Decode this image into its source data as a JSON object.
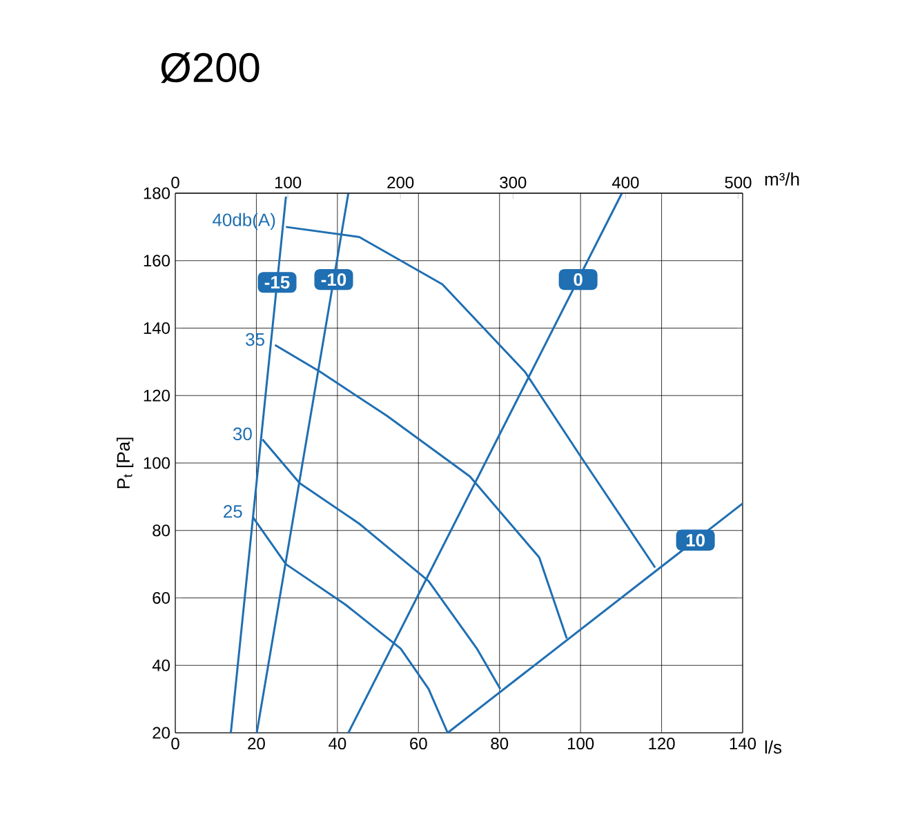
{
  "chart_data": {
    "type": "line",
    "title": "Ø200",
    "xlabel": "l/s",
    "x2label": "m³/h",
    "ylabel": "P$_{t}$ [Pa]",
    "xlim": [
      0,
      140
    ],
    "xticks": [
      0,
      20,
      40,
      60,
      80,
      100,
      120,
      140
    ],
    "x2lim": [
      0,
      504
    ],
    "x2ticks": [
      0,
      100,
      200,
      300,
      400,
      500
    ],
    "ylim": [
      20,
      180
    ],
    "yticks": [
      20,
      40,
      60,
      80,
      100,
      120,
      140,
      160,
      180
    ],
    "grid": true,
    "marker": "none",
    "line_style": "solid",
    "series": [
      {
        "color": "#1f6fb2",
        "x": [
          27.3,
          45.4,
          65.9,
          86.3,
          100,
          118.4
        ],
        "values": [
          170,
          167,
          153,
          127,
          102,
          69
        ]
      },
      {
        "color": "#1f6fb2",
        "x": [
          24.6,
          35.8,
          52.2,
          72.7,
          89.8,
          96.6
        ],
        "values": [
          135,
          127,
          114,
          96,
          72,
          48
        ]
      },
      {
        "color": "#1f6fb2",
        "x": [
          21.5,
          30.7,
          45.4,
          62.5,
          74.4,
          80.2
        ],
        "values": [
          107,
          94,
          82,
          65,
          45,
          33
        ]
      },
      {
        "color": "#1f6fb2",
        "x": [
          19.1,
          27.3,
          42,
          55.6,
          62.5,
          67.2
        ],
        "values": [
          84,
          70,
          58,
          45,
          33,
          20
        ]
      },
      {
        "name": "-15",
        "color": "#1f6fb2",
        "x": [
          13.7,
          27.3
        ],
        "values": [
          20,
          179
        ]
      },
      {
        "name": "-10",
        "color": "#1f6fb2",
        "x": [
          20.1,
          42.7
        ],
        "values": [
          20,
          180
        ]
      },
      {
        "name": "0",
        "color": "#1f6fb2",
        "x": [
          42.7,
          110.2
        ],
        "values": [
          20,
          180
        ]
      },
      {
        "name": "10",
        "color": "#1f6fb2",
        "x": [
          67.2,
          140
        ],
        "values": [
          20,
          88
        ]
      }
    ],
    "annotations": [
      {
        "text": "40db(A)",
        "x": 27.3,
        "y": 170
      },
      {
        "text": "35",
        "x": 24.6,
        "y": 135
      },
      {
        "text": "30",
        "x": 21.5,
        "y": 107
      },
      {
        "text": "25",
        "x": 19.1,
        "y": 84
      }
    ]
  }
}
